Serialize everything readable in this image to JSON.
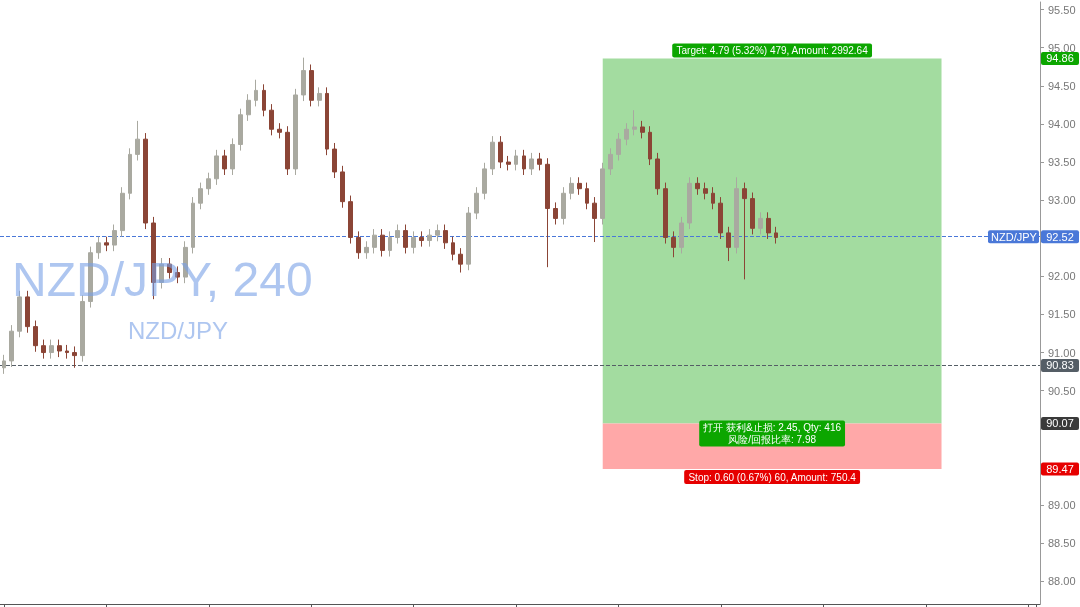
{
  "chart_data": {
    "type": "candlestick",
    "tick_labels": "y",
    "categories": [
      null,
      null,
      null,
      null,
      null,
      null,
      null,
      null,
      null,
      null,
      null,
      null,
      null,
      null,
      null,
      null,
      null,
      null,
      null,
      null,
      null,
      null,
      null,
      null,
      null,
      null,
      null,
      null,
      null,
      null,
      null,
      null,
      null,
      null,
      null,
      null,
      null,
      null,
      null,
      null,
      null,
      null,
      null,
      null,
      null,
      null,
      null,
      null,
      null,
      null,
      null,
      null,
      null,
      null,
      null,
      null,
      null,
      null,
      null,
      null,
      null,
      null,
      null,
      null,
      null,
      null,
      null,
      null,
      null,
      null,
      null,
      null,
      null,
      null,
      null,
      null,
      null,
      null,
      null,
      null,
      null,
      null,
      null,
      null,
      null,
      null,
      null,
      null,
      null,
      null,
      null,
      null,
      null,
      null,
      null,
      null,
      null,
      null,
      null,
      null,
      null,
      null,
      null,
      null,
      null,
      null,
      null,
      null,
      null,
      null,
      null,
      null,
      null,
      null,
      null,
      null,
      null,
      null,
      null,
      null,
      null,
      null,
      null,
      null,
      null,
      null,
      null,
      null,
      null,
      null,
      null,
      null
    ],
    "ohlc": [
      [
        90.8,
        90.97,
        90.72,
        90.89
      ],
      [
        90.89,
        91.36,
        90.81,
        91.28
      ],
      [
        91.28,
        91.81,
        91.2,
        91.73
      ],
      [
        91.73,
        91.81,
        91.26,
        91.34
      ],
      [
        91.34,
        91.42,
        91.01,
        91.09
      ],
      [
        91.09,
        91.17,
        90.92,
        91.0
      ],
      [
        91.0,
        91.17,
        90.92,
        91.09
      ],
      [
        91.09,
        91.17,
        90.94,
        91.02
      ],
      [
        91.02,
        91.1,
        90.92,
        91.0
      ],
      [
        91.0,
        91.08,
        90.8,
        90.96
      ],
      [
        90.96,
        91.75,
        90.88,
        91.67
      ],
      [
        91.67,
        92.39,
        91.59,
        92.31
      ],
      [
        92.31,
        92.52,
        92.23,
        92.44
      ],
      [
        92.44,
        92.52,
        92.33,
        92.41
      ],
      [
        92.41,
        92.68,
        92.33,
        92.6
      ],
      [
        92.6,
        93.17,
        92.52,
        93.09
      ],
      [
        93.09,
        93.68,
        93.01,
        93.6
      ],
      [
        93.6,
        94.04,
        93.52,
        93.8
      ],
      [
        93.8,
        93.88,
        92.62,
        92.7
      ],
      [
        92.7,
        92.78,
        91.7,
        91.92
      ],
      [
        91.92,
        92.24,
        91.84,
        92.16
      ],
      [
        92.16,
        92.24,
        91.97,
        92.05
      ],
      [
        92.05,
        92.13,
        91.91,
        91.99
      ],
      [
        91.99,
        92.46,
        91.91,
        92.38
      ],
      [
        92.38,
        93.04,
        92.3,
        92.96
      ],
      [
        92.96,
        93.23,
        92.88,
        93.15
      ],
      [
        93.15,
        93.36,
        93.07,
        93.28
      ],
      [
        93.28,
        93.66,
        93.2,
        93.58
      ],
      [
        93.58,
        93.66,
        93.33,
        93.41
      ],
      [
        93.41,
        93.81,
        93.33,
        93.73
      ],
      [
        93.73,
        94.2,
        93.65,
        94.12
      ],
      [
        94.12,
        94.39,
        94.04,
        94.31
      ],
      [
        94.31,
        94.58,
        94.23,
        94.44
      ],
      [
        94.44,
        94.52,
        94.1,
        94.18
      ],
      [
        94.18,
        94.26,
        93.85,
        93.93
      ],
      [
        93.93,
        94.01,
        93.81,
        93.89
      ],
      [
        93.89,
        93.97,
        93.33,
        93.41
      ],
      [
        93.41,
        94.46,
        93.33,
        94.38
      ],
      [
        94.38,
        94.87,
        94.3,
        94.7
      ],
      [
        94.7,
        94.78,
        94.23,
        94.31
      ],
      [
        94.31,
        94.48,
        94.23,
        94.4
      ],
      [
        94.4,
        94.48,
        93.59,
        93.67
      ],
      [
        93.67,
        93.75,
        93.29,
        93.37
      ],
      [
        93.37,
        93.45,
        92.9,
        92.98
      ],
      [
        92.98,
        93.06,
        92.43,
        92.51
      ],
      [
        92.51,
        92.59,
        92.23,
        92.31
      ],
      [
        92.31,
        92.46,
        92.23,
        92.38
      ],
      [
        92.38,
        92.62,
        92.3,
        92.54
      ],
      [
        92.54,
        92.62,
        92.26,
        92.34
      ],
      [
        92.34,
        92.59,
        92.26,
        92.51
      ],
      [
        92.51,
        92.68,
        92.43,
        92.6
      ],
      [
        92.6,
        92.68,
        92.3,
        92.38
      ],
      [
        92.38,
        92.59,
        92.3,
        92.51
      ],
      [
        92.51,
        92.59,
        92.39,
        92.47
      ],
      [
        92.47,
        92.62,
        92.39,
        92.54
      ],
      [
        92.54,
        92.68,
        92.46,
        92.6
      ],
      [
        92.6,
        92.68,
        92.36,
        92.44
      ],
      [
        92.44,
        92.52,
        92.21,
        92.29
      ],
      [
        92.29,
        92.37,
        92.05,
        92.16
      ],
      [
        92.16,
        92.91,
        92.08,
        92.83
      ],
      [
        92.83,
        93.17,
        92.75,
        93.09
      ],
      [
        93.09,
        93.49,
        93.01,
        93.41
      ],
      [
        93.41,
        93.84,
        93.33,
        93.76
      ],
      [
        93.76,
        93.84,
        93.42,
        93.5
      ],
      [
        93.5,
        93.58,
        93.39,
        93.47
      ],
      [
        93.47,
        93.66,
        93.39,
        93.58
      ],
      [
        93.58,
        93.66,
        93.33,
        93.41
      ],
      [
        93.41,
        93.62,
        93.33,
        93.54
      ],
      [
        93.54,
        93.62,
        93.39,
        93.47
      ],
      [
        93.47,
        93.55,
        92.12,
        92.89
      ],
      [
        92.89,
        92.97,
        92.68,
        92.76
      ],
      [
        92.76,
        93.17,
        92.68,
        93.09
      ],
      [
        93.09,
        93.3,
        93.01,
        93.22
      ],
      [
        93.22,
        93.3,
        93.07,
        93.15
      ],
      [
        93.15,
        93.23,
        92.88,
        92.96
      ],
      [
        92.96,
        93.04,
        92.45,
        92.76
      ],
      [
        92.76,
        93.49,
        92.68,
        93.41
      ],
      [
        93.41,
        93.68,
        93.33,
        93.6
      ],
      [
        93.6,
        93.88,
        93.52,
        93.8
      ],
      [
        93.8,
        94.01,
        93.72,
        93.93
      ],
      [
        93.93,
        94.18,
        93.85,
        93.96
      ],
      [
        93.96,
        94.04,
        93.81,
        93.89
      ],
      [
        93.89,
        93.97,
        93.46,
        93.54
      ],
      [
        93.54,
        93.62,
        93.07,
        93.15
      ],
      [
        93.15,
        93.23,
        92.43,
        92.51
      ],
      [
        92.51,
        92.59,
        92.25,
        92.38
      ],
      [
        92.38,
        92.78,
        92.3,
        92.7
      ],
      [
        92.7,
        93.3,
        92.62,
        93.22
      ],
      [
        93.22,
        93.3,
        93.07,
        93.15
      ],
      [
        93.15,
        93.23,
        93.01,
        93.09
      ],
      [
        93.09,
        93.17,
        92.88,
        92.96
      ],
      [
        92.96,
        93.04,
        92.49,
        92.57
      ],
      [
        92.57,
        92.65,
        92.2,
        92.38
      ],
      [
        92.38,
        93.3,
        92.3,
        93.15
      ],
      [
        93.15,
        93.23,
        91.96,
        93.02
      ],
      [
        93.02,
        93.1,
        92.55,
        92.63
      ],
      [
        92.63,
        92.84,
        92.55,
        92.76
      ],
      [
        92.76,
        92.84,
        92.49,
        92.57
      ],
      [
        92.57,
        92.65,
        92.43,
        92.51
      ],
      null,
      null,
      null,
      null,
      null,
      null,
      null,
      null,
      null,
      null,
      null,
      null,
      null,
      null,
      null,
      null,
      null,
      null,
      null,
      null,
      null,
      null,
      null,
      null,
      null,
      null,
      null,
      null,
      null,
      null,
      null,
      null,
      null
    ],
    "colors": [
      "#a9a9a0",
      "#a9a9a0",
      "#a9a9a0",
      "#8b4536",
      "#8b4536",
      "#8b4536",
      "#a9a9a0",
      "#8b4536",
      "#8b4536",
      "#8b4536",
      "#a9a9a0",
      "#a9a9a0",
      "#a9a9a0",
      "#8b4536",
      "#a9a9a0",
      "#a9a9a0",
      "#a9a9a0",
      "#a9a9a0",
      "#8b4536",
      "#8b4536",
      "#a9a9a0",
      "#8b4536",
      "#8b4536",
      "#a9a9a0",
      "#a9a9a0",
      "#a9a9a0",
      "#a9a9a0",
      "#a9a9a0",
      "#8b4536",
      "#a9a9a0",
      "#a9a9a0",
      "#a9a9a0",
      "#a9a9a0",
      "#8b4536",
      "#8b4536",
      "#8b4536",
      "#8b4536",
      "#a9a9a0",
      "#a9a9a0",
      "#8b4536",
      "#a9a9a0",
      "#8b4536",
      "#8b4536",
      "#8b4536",
      "#8b4536",
      "#8b4536",
      "#a9a9a0",
      "#a9a9a0",
      "#8b4536",
      "#a9a9a0",
      "#a9a9a0",
      "#8b4536",
      "#a9a9a0",
      "#8b4536",
      "#a9a9a0",
      "#a9a9a0",
      "#8b4536",
      "#8b4536",
      "#8b4536",
      "#a9a9a0",
      "#a9a9a0",
      "#a9a9a0",
      "#a9a9a0",
      "#8b4536",
      "#8b4536",
      "#a9a9a0",
      "#8b4536",
      "#a9a9a0",
      "#8b4536",
      "#8b4536",
      "#8b4536",
      "#a9a9a0",
      "#a9a9a0",
      "#8b4536",
      "#8b4536",
      "#8b4536",
      "#a9a9a0",
      "#a9a9a0",
      "#a9a9a0",
      "#a9a9a0",
      "#a9a9a0",
      "#8b4536",
      "#8b4536",
      "#8b4536",
      "#8b4536",
      "#8b4536",
      "#a9a9a0",
      "#a9a9a0",
      "#8b4536",
      "#8b4536",
      "#8b4536",
      "#8b4536",
      "#8b4536",
      "#a9a9a0",
      "#8b4536",
      "#8b4536",
      "#a9a9a0",
      "#8b4536",
      "#8b4536",
      null,
      null,
      null,
      null,
      null,
      null,
      null,
      null,
      null,
      null,
      null,
      null,
      null,
      null,
      null,
      null,
      null,
      null,
      null,
      null,
      null,
      null,
      null,
      null,
      null,
      null,
      null,
      null,
      null,
      null,
      null,
      null,
      null
    ],
    "ylim": [
      87.7,
      95.6
    ],
    "yticks": [
      {
        "value": 88,
        "label": "88.00"
      },
      {
        "value": 88.5,
        "label": "88.50"
      },
      {
        "value": 89,
        "label": "89.00"
      },
      {
        "value": 89.5,
        "label": null
      },
      {
        "value": 90,
        "label": null
      },
      {
        "value": 90.5,
        "label": "90.50"
      },
      {
        "value": 91,
        "label": "91.00"
      },
      {
        "value": 91.5,
        "label": "91.50"
      },
      {
        "value": 92,
        "label": "92.00"
      },
      {
        "value": 92.5,
        "label": null
      },
      {
        "value": 93,
        "label": "93.00"
      },
      {
        "value": 93.5,
        "label": "93.50"
      },
      {
        "value": 94,
        "label": "94.00"
      },
      {
        "value": 94.5,
        "label": "94.50"
      },
      {
        "value": 95,
        "label": "95.00"
      },
      {
        "value": 95.5,
        "label": "95.50"
      }
    ],
    "ref_lines": [
      {
        "axis": "y",
        "value": 92.52,
        "label": "NZD/JPY",
        "color": "#4a78d8",
        "line_style": "dashed"
      },
      {
        "axis": "y",
        "value": 90.83,
        "color": "#555e66",
        "line_style": "dashed"
      }
    ],
    "bands": [
      {
        "axis": "y",
        "from": 90.07,
        "to": 94.86,
        "label": "Target: 4.79 (5.32%) 479, Amount: 2992.64",
        "color": "#a3dca0"
      },
      {
        "axis": "y",
        "from": 89.47,
        "to": 90.07,
        "label": "Stop: 0.60 (0.67%) 60, Amount: 750.4",
        "color": "#ffa8a8"
      }
    ],
    "annotations": [
      "NZD/JPY, 240",
      "NZD/JPY",
      "打开 获利&止损: 2.45, Qty: 416",
      "风险/回报比率: 7.98",
      {
        "text": "94.86",
        "y": 94.86
      },
      {
        "text": "92.52",
        "y": 92.52
      },
      {
        "text": "90.83",
        "y": 90.83
      },
      {
        "text": "90.07",
        "y": 90.07
      },
      {
        "text": "89.47",
        "y": 89.47
      }
    ]
  }
}
